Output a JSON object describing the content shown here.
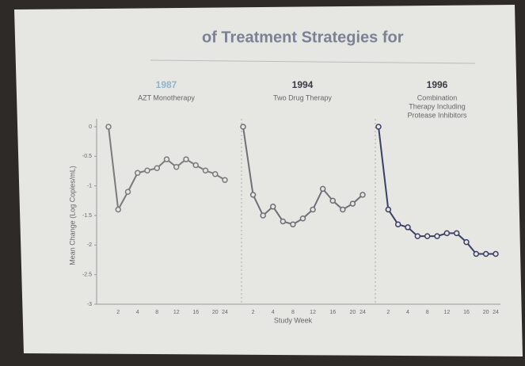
{
  "title": "of Treatment Strategies for",
  "y_label": "Mean Change (Log Copies/mL)",
  "x_label": "Study Week",
  "chart_data": [
    {
      "type": "line",
      "title": "1987",
      "subtitle": [
        "AZT Monotherapy"
      ],
      "title_color": "#8fb4cc",
      "color": "#7a7a7a",
      "categories": [
        null,
        "2",
        null,
        "4",
        null,
        "8",
        null,
        "12",
        null,
        "16",
        null,
        "20",
        "24"
      ],
      "values": [
        0.0,
        -1.4,
        -1.1,
        -0.78,
        -0.74,
        -0.7,
        -0.55,
        -0.68,
        -0.55,
        -0.65,
        -0.74,
        -0.8,
        -0.9
      ],
      "ylim": [
        -3.0,
        0.0
      ],
      "yticks": [
        0.0,
        -0.5,
        -1.0,
        -1.5,
        -2.0,
        -2.5,
        -3.0
      ]
    },
    {
      "type": "line",
      "title": "1994",
      "subtitle": [
        "Two Drug Therapy"
      ],
      "title_color": "#3a3a44",
      "color": "#6f6f78",
      "categories": [
        null,
        "2",
        null,
        "4",
        null,
        "8",
        null,
        "12",
        null,
        "16",
        null,
        "20",
        "24"
      ],
      "values": [
        0.0,
        -1.15,
        -1.5,
        -1.35,
        -1.6,
        -1.65,
        -1.55,
        -1.4,
        -1.05,
        -1.25,
        -1.4,
        -1.3,
        -1.15
      ],
      "ylim": [
        -3.0,
        0.0
      ]
    },
    {
      "type": "line",
      "title": "1996",
      "subtitle": [
        "Combination",
        "Therapy Including",
        "Protease Inhibitors"
      ],
      "title_color": "#3a3a44",
      "color": "#3b3f66",
      "categories": [
        null,
        "2",
        null,
        "4",
        null,
        "8",
        null,
        "12",
        null,
        "16",
        null,
        "20",
        "24"
      ],
      "values": [
        0.0,
        -1.4,
        -1.65,
        -1.7,
        -1.85,
        -1.85,
        -1.85,
        -1.8,
        -1.8,
        -1.95,
        -2.15,
        -2.15,
        -2.15
      ],
      "ylim": [
        -3.0,
        0.0
      ]
    }
  ]
}
